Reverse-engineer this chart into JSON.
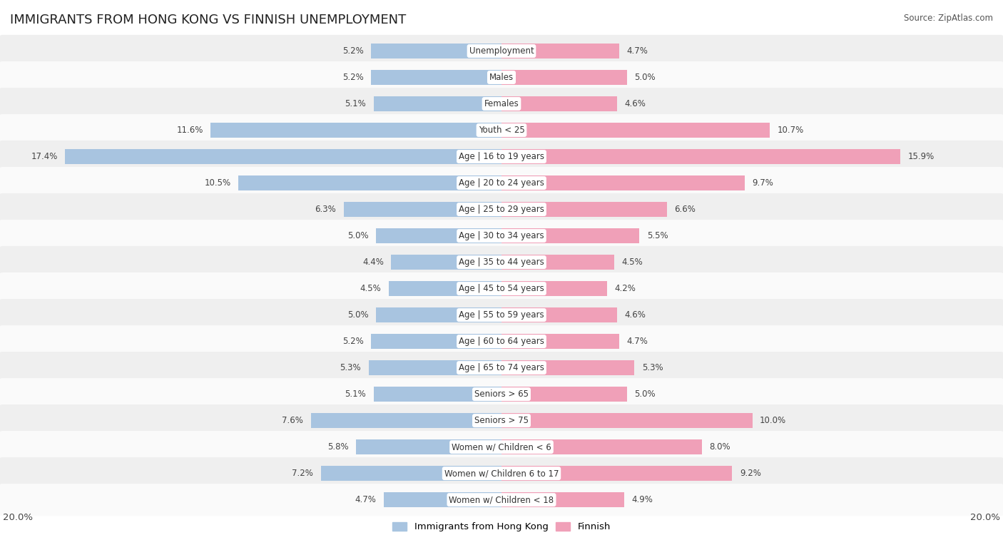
{
  "title": "IMMIGRANTS FROM HONG KONG VS FINNISH UNEMPLOYMENT",
  "source": "Source: ZipAtlas.com",
  "categories": [
    "Unemployment",
    "Males",
    "Females",
    "Youth < 25",
    "Age | 16 to 19 years",
    "Age | 20 to 24 years",
    "Age | 25 to 29 years",
    "Age | 30 to 34 years",
    "Age | 35 to 44 years",
    "Age | 45 to 54 years",
    "Age | 55 to 59 years",
    "Age | 60 to 64 years",
    "Age | 65 to 74 years",
    "Seniors > 65",
    "Seniors > 75",
    "Women w/ Children < 6",
    "Women w/ Children 6 to 17",
    "Women w/ Children < 18"
  ],
  "left_values": [
    5.2,
    5.2,
    5.1,
    11.6,
    17.4,
    10.5,
    6.3,
    5.0,
    4.4,
    4.5,
    5.0,
    5.2,
    5.3,
    5.1,
    7.6,
    5.8,
    7.2,
    4.7
  ],
  "right_values": [
    4.7,
    5.0,
    4.6,
    10.7,
    15.9,
    9.7,
    6.6,
    5.5,
    4.5,
    4.2,
    4.6,
    4.7,
    5.3,
    5.0,
    10.0,
    8.0,
    9.2,
    4.9
  ],
  "left_color": "#a8c4e0",
  "right_color": "#f0a0b8",
  "row_bg_even": "#efefef",
  "row_bg_odd": "#fafafa",
  "axis_max": 20.0,
  "left_label": "Immigrants from Hong Kong",
  "right_label": "Finnish",
  "title_fontsize": 13,
  "source_fontsize": 8.5,
  "legend_fontsize": 9.5,
  "value_fontsize": 8.5,
  "category_fontsize": 8.5
}
